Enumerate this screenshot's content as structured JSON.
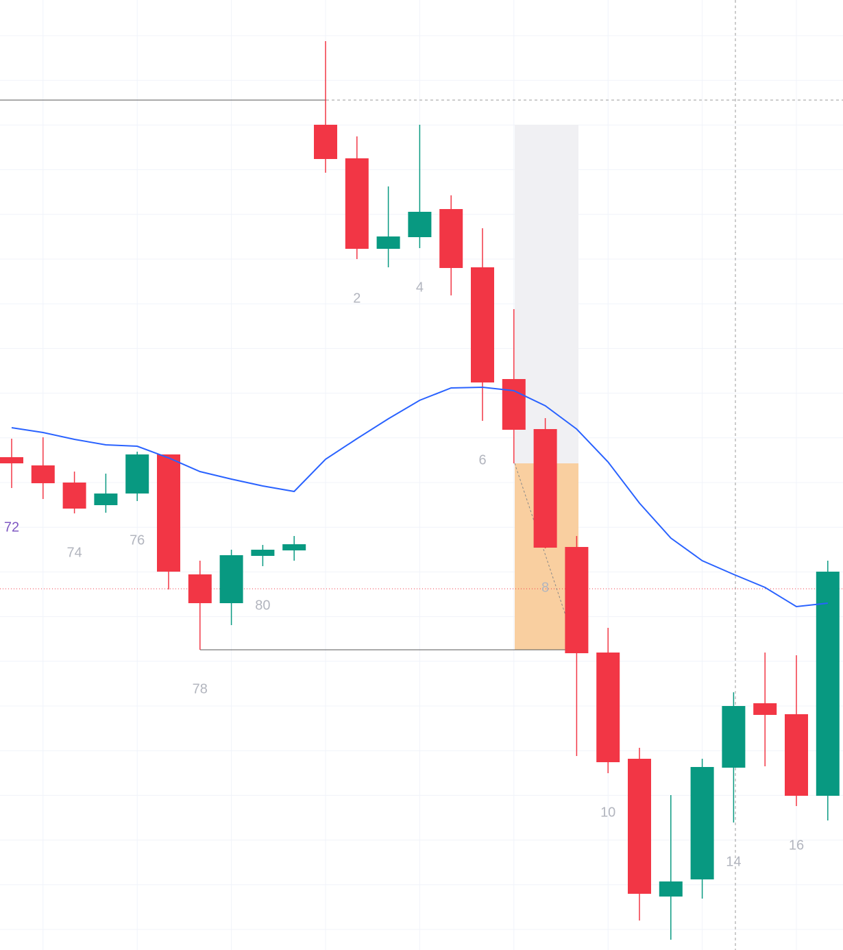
{
  "chart_data": {
    "type": "candlestick",
    "categories": [
      "72",
      null,
      "74",
      null,
      "76",
      null,
      "78",
      null,
      "80",
      null,
      null,
      "2",
      null,
      "4",
      null,
      "6",
      null,
      "8",
      null,
      "10",
      null,
      null,
      null,
      "14",
      null,
      "16",
      null
    ],
    "open": [
      719,
      707,
      682,
      649,
      666,
      723,
      548,
      506,
      575,
      583,
      1204,
      1155,
      1023,
      1040,
      1081,
      996,
      833,
      760,
      588,
      434,
      279,
      78,
      103,
      266,
      360,
      344,
      225
    ],
    "close": [
      710,
      681,
      644,
      666,
      723,
      552,
      506,
      576,
      584,
      592,
      1154,
      1023,
      1041,
      1077,
      995,
      828,
      759,
      587,
      433,
      274,
      82,
      100,
      267,
      356,
      343,
      225,
      552
    ],
    "high": [
      746,
      748,
      698,
      695,
      727,
      723,
      568,
      584,
      591,
      604,
      1326,
      1187,
      1114,
      1204,
      1101,
      1053,
      935,
      776,
      604,
      470,
      295,
      226,
      279,
      376,
      434,
      430,
      568
    ],
    "low": [
      674,
      658,
      637,
      638,
      655,
      526,
      438,
      474,
      560,
      568,
      1134,
      1008,
      996,
      1024,
      955,
      772,
      710,
      586,
      283,
      258,
      43,
      15,
      75,
      186,
      268,
      210,
      189
    ],
    "moving_average": {
      "color": "#2962ff",
      "values": [
        762,
        755,
        745,
        737,
        735,
        718,
        698,
        687,
        677,
        669,
        716,
        746,
        775,
        802,
        820,
        821,
        816,
        794,
        760,
        712,
        652,
        601,
        568,
        548,
        529,
        501,
        506
      ]
    },
    "up_color": "#089981",
    "down_color": "#f23645",
    "label_color": "#b2b5be",
    "first_label_color": "#7e57c2",
    "ylim": [
      0,
      1386
    ],
    "grid": true
  }
}
